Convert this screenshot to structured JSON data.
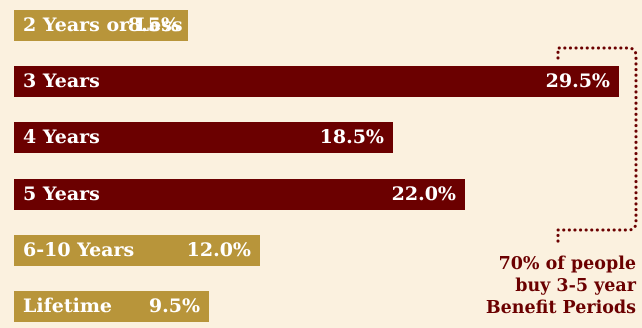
{
  "chart_data": {
    "type": "bar",
    "orientation": "horizontal",
    "categories": [
      "2 Years or Less",
      "3 Years",
      "4 Years",
      "5 Years",
      "6-10 Years",
      "Lifetime"
    ],
    "values": [
      8.5,
      29.5,
      18.5,
      22.0,
      12.0,
      9.5
    ],
    "value_labels": [
      "8.5%",
      "29.5%",
      "18.5%",
      "22.0%",
      "12.0%",
      "9.5%"
    ],
    "unit": "%",
    "xlim": [
      0,
      30
    ],
    "grid": false,
    "legend": "none",
    "colors": {
      "highlight": "#6b0000",
      "normal": "#b8953a",
      "background": "#fbf1df"
    },
    "highlighted_categories": [
      "3 Years",
      "4 Years",
      "5 Years"
    ],
    "annotation": {
      "lines": [
        "70% of people",
        "buy 3-5 year",
        "Benefit Periods"
      ]
    }
  }
}
